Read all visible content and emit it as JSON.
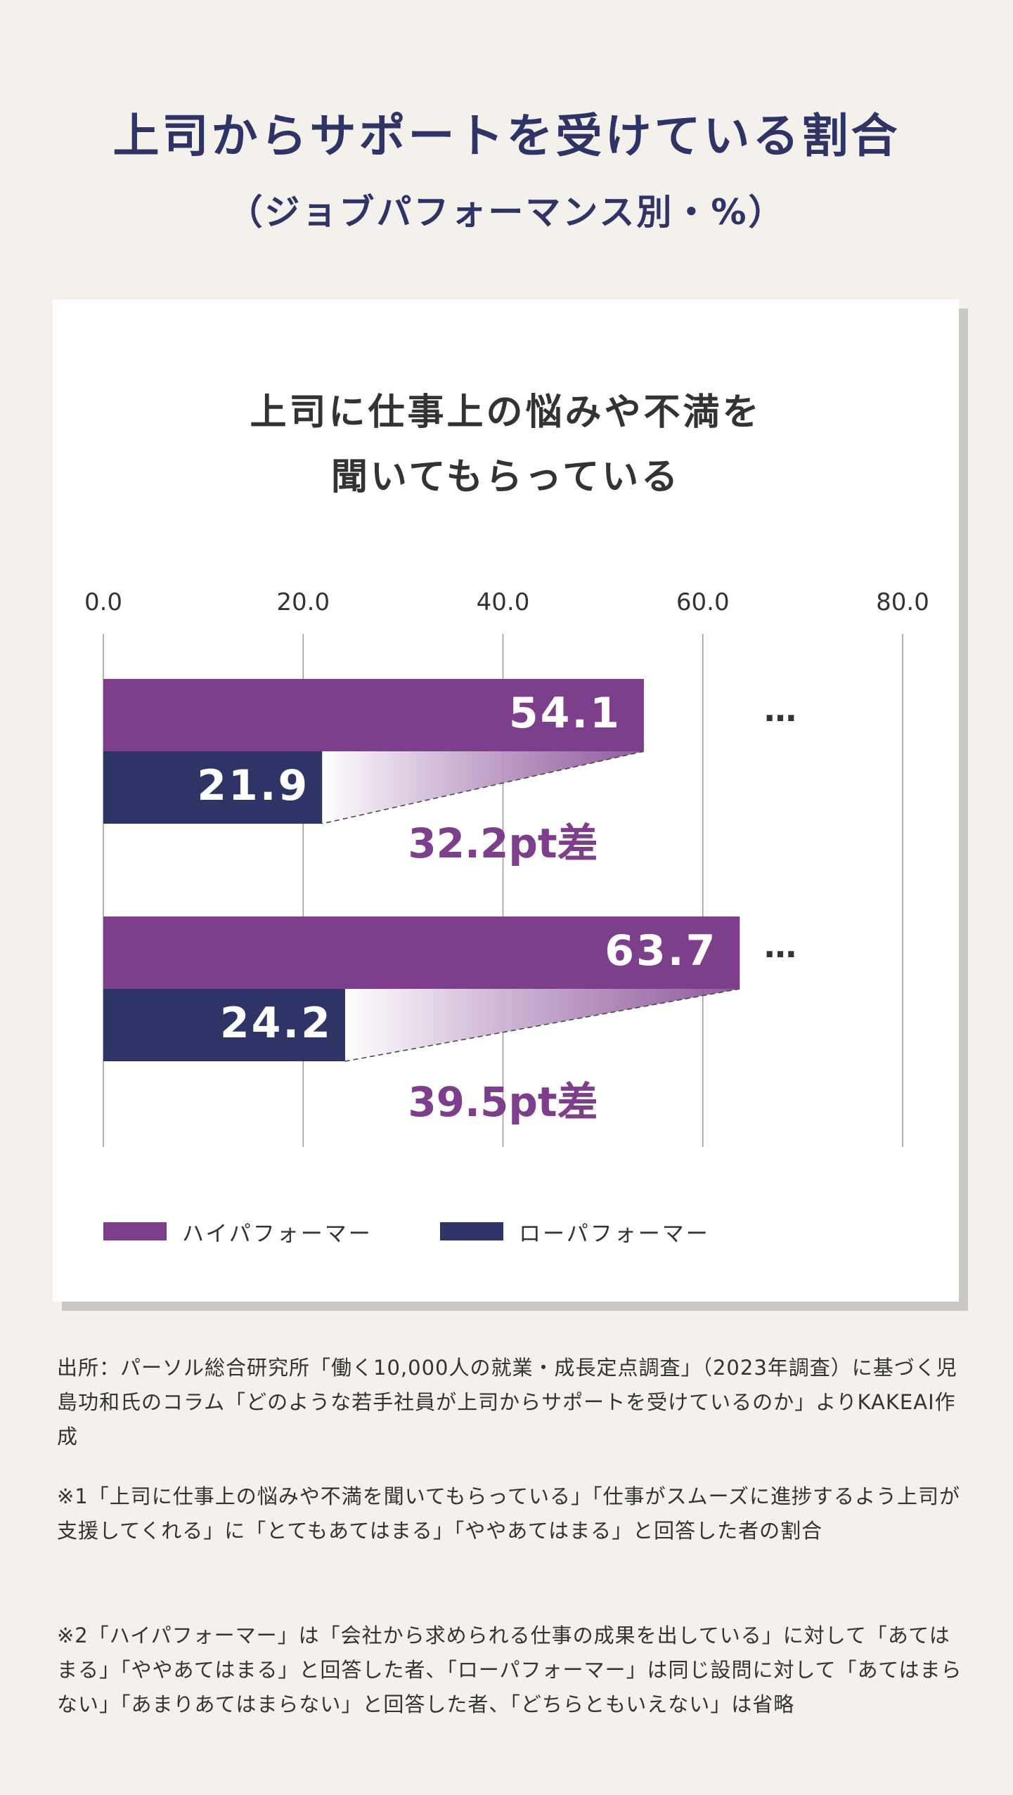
{
  "header": {
    "title": "上司からサポートを受けている割合",
    "subtitle": "（ジョブパフォーマンス別・%）"
  },
  "chart_data": {
    "type": "bar",
    "orientation": "horizontal",
    "title_lines": [
      "上司に仕事上の悩みや不満を",
      "聞いてもらっている"
    ],
    "xlim": [
      0,
      80
    ],
    "x_ticks": [
      "0.0",
      "20.0",
      "40.0",
      "60.0",
      "80.0"
    ],
    "grid": true,
    "series": [
      {
        "name": "ハイパフォーマー",
        "color": "#7d3e8c",
        "values": [
          54.1,
          63.7
        ],
        "labels": [
          "54.1",
          "63.7"
        ]
      },
      {
        "name": "ローパフォーマー",
        "color": "#2e3466",
        "values": [
          21.9,
          24.2
        ],
        "labels": [
          "21.9",
          "24.2"
        ]
      }
    ],
    "groups": [
      {
        "difference_label": "32.2pt差",
        "ellipsis": "…"
      },
      {
        "difference_label": "39.5pt差",
        "ellipsis": "…"
      }
    ],
    "legend_position": "bottom-left",
    "label_color": "#ffffff",
    "difference_color": "#7d3e8c"
  },
  "notes": {
    "source": "出所：パーソル総合研究所「働く10,000人の就業・成長定点調査」（2023年調査）に基づく児島功和氏のコラム「どのような若手社員が上司からサポートを受けているのか」よりKAKEAI作成",
    "note1": "※1「上司に仕事上の悩みや不満を聞いてもらっている」「仕事がスムーズに進捗するよう上司が支援してくれる」に「とてもあてはまる」「ややあてはまる」と回答した者の割合",
    "note2": "※2「ハイパフォーマー」は「会社から求められる仕事の成果を出している」に対して「あてはまる」「ややあてはまる」と回答した者、「ローパフォーマー」は同じ設問に対して「あてはまらない」「あまりあてはまらない」と回答した者、「どちらともいえない」は省略"
  }
}
